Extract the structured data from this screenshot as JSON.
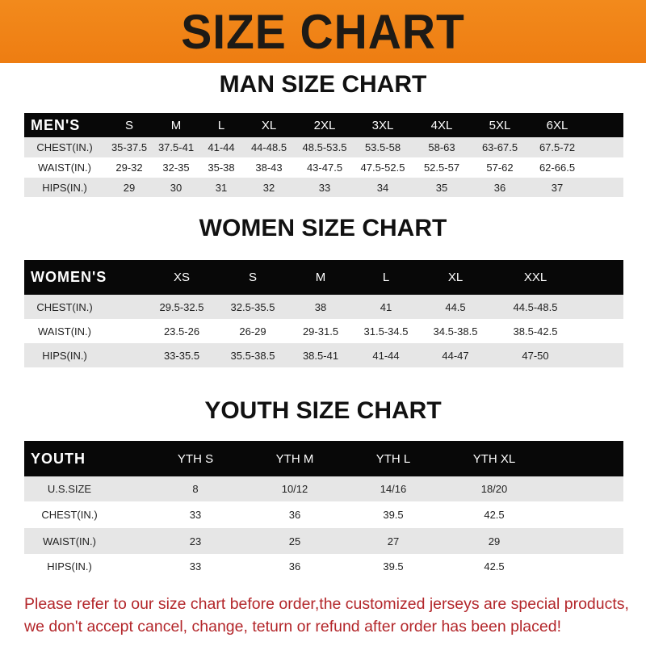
{
  "banner": {
    "title": "SIZE CHART",
    "color": "#f08518"
  },
  "men": {
    "title": "MAN SIZE CHART",
    "header": [
      "MEN'S",
      "S",
      "M",
      "L",
      "XL",
      "2XL",
      "3XL",
      "4XL",
      "5XL",
      "6XL"
    ],
    "rows": [
      [
        "CHEST(IN.)",
        "35-37.5",
        "37.5-41",
        "41-44",
        "44-48.5",
        "48.5-53.5",
        "53.5-58",
        "58-63",
        "63-67.5",
        "67.5-72"
      ],
      [
        "WAIST(IN.)",
        "29-32",
        "32-35",
        "35-38",
        "38-43",
        "43-47.5",
        "47.5-52.5",
        "52.5-57",
        "57-62",
        "62-66.5"
      ],
      [
        "HIPS(IN.)",
        "29",
        "30",
        "31",
        "32",
        "33",
        "34",
        "35",
        "36",
        "37"
      ]
    ]
  },
  "women": {
    "title": "WOMEN SIZE CHART",
    "header": [
      "WOMEN'S",
      "XS",
      "S",
      "M",
      "L",
      "XL",
      "XXL"
    ],
    "rows": [
      [
        "CHEST(IN.)",
        "29.5-32.5",
        "32.5-35.5",
        "38",
        "41",
        "44.5",
        "44.5-48.5"
      ],
      [
        "WAIST(IN.)",
        "23.5-26",
        "26-29",
        "29-31.5",
        "31.5-34.5",
        "34.5-38.5",
        "38.5-42.5"
      ],
      [
        "HIPS(IN.)",
        "33-35.5",
        "35.5-38.5",
        "38.5-41",
        "41-44",
        "44-47",
        "47-50"
      ]
    ]
  },
  "youth": {
    "title": "YOUTH SIZE CHART",
    "header": [
      "YOUTH",
      "YTH S",
      "YTH M",
      "YTH L",
      "YTH XL"
    ],
    "rows": [
      [
        "U.S.SIZE",
        "8",
        "10/12",
        "14/16",
        "18/20"
      ],
      [
        "CHEST(IN.)",
        "33",
        "36",
        "39.5",
        "42.5"
      ],
      [
        "WAIST(IN.)",
        "23",
        "25",
        "27",
        "29"
      ],
      [
        "HIPS(IN.)",
        "33",
        "36",
        "39.5",
        "42.5"
      ]
    ]
  },
  "footer": {
    "line1": "Please refer to our size chart before order,the customized jerseys are special products,",
    "line2": "we don't accept cancel, change, teturn or refund after order has been placed!",
    "color": "#b3262a"
  }
}
